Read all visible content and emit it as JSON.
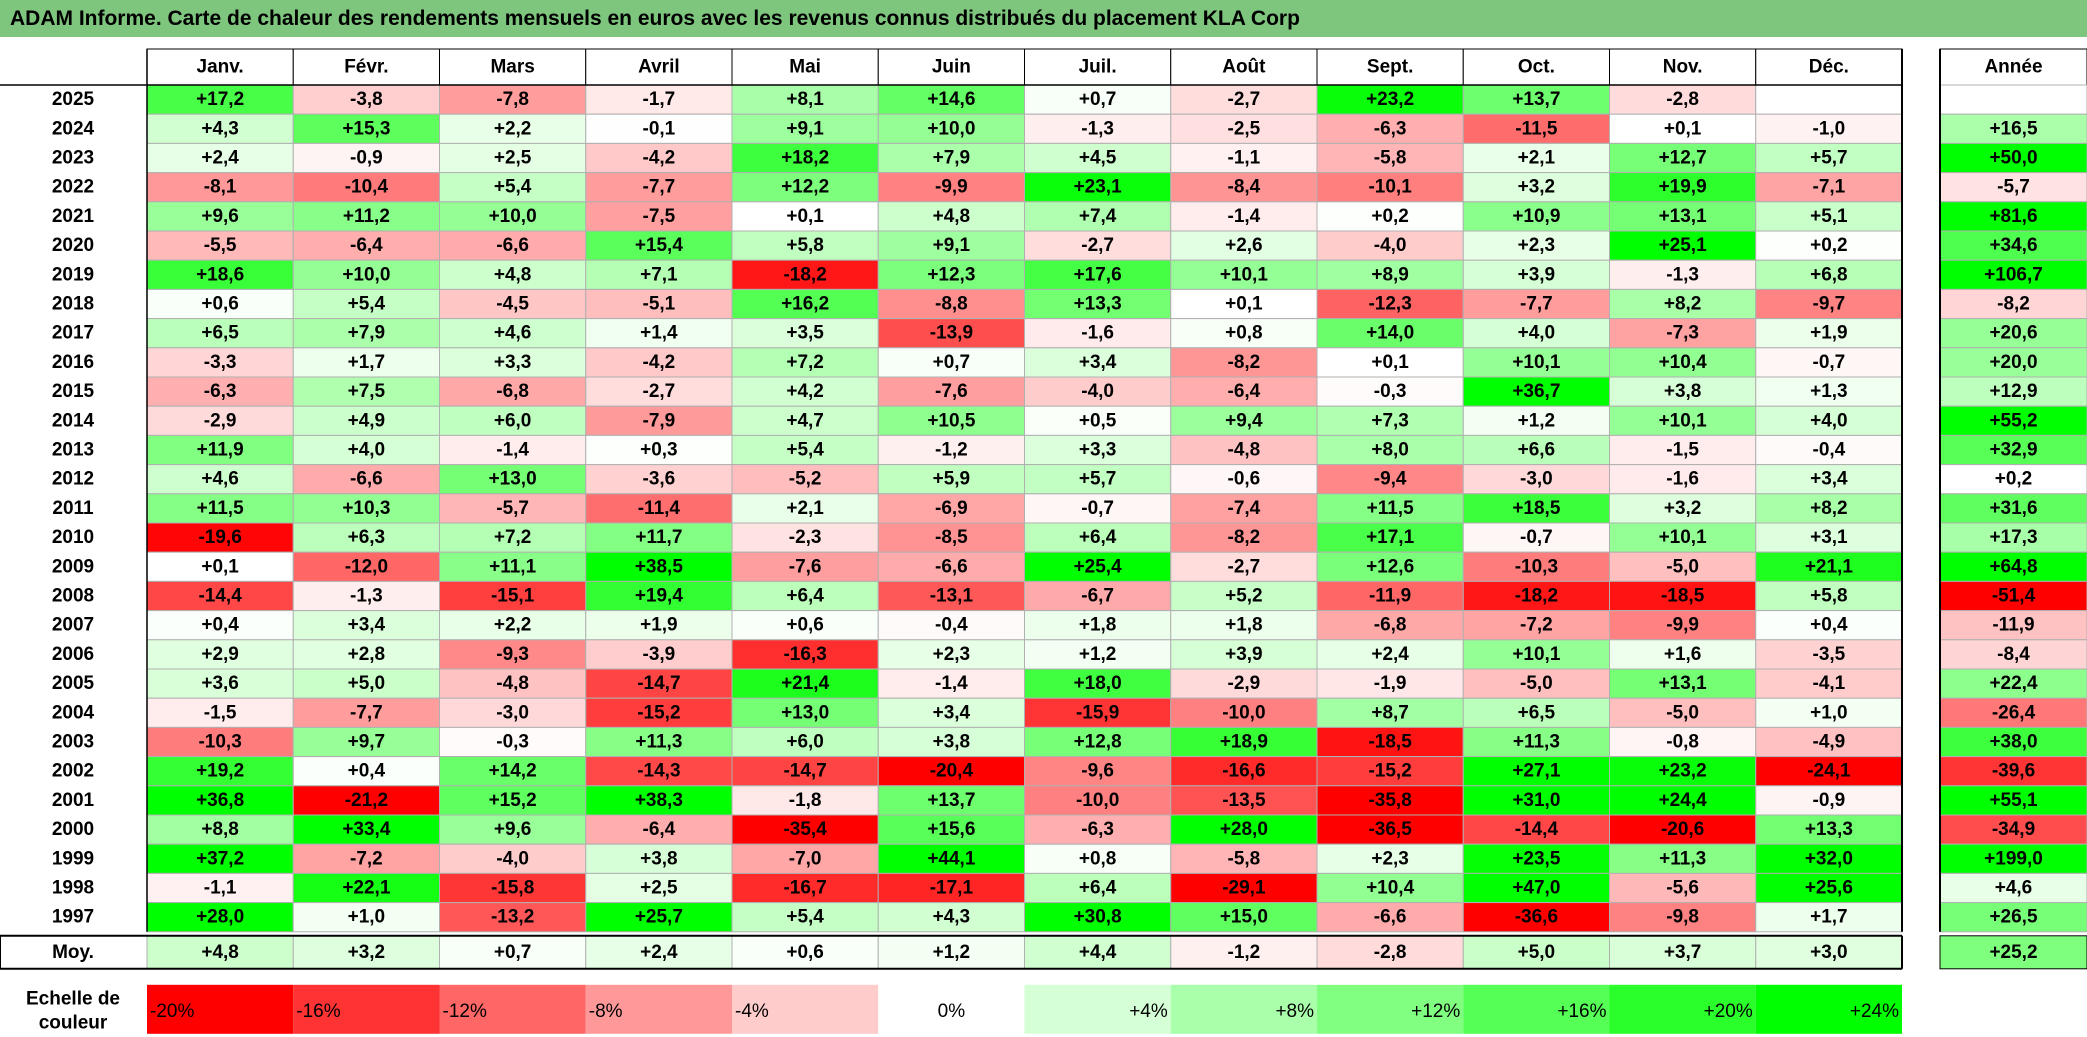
{
  "title": "ADAM Informe. Carte de chaleur des rendements mensuels en euros avec les revenus connus distribués du placement KLA Corp",
  "colors": {
    "title_bg": "#7ec67e",
    "neg_max": "#ff0000",
    "zero": "#ffffff",
    "pos_max": "#00ff00",
    "grid": "#b0b0b0"
  },
  "chart_data": {
    "type": "heatmap",
    "title": "ADAM Informe. Carte de chaleur des rendements mensuels en euros avec les revenus connus distribués du placement KLA Corp",
    "columns": [
      "Janv.",
      "Févr.",
      "Mars",
      "Avril",
      "Mai",
      "Juin",
      "Juil.",
      "Août",
      "Sept.",
      "Oct.",
      "Nov.",
      "Déc."
    ],
    "year_header": "Année",
    "rows": [
      {
        "year": "2025",
        "values": [
          "+17,2",
          "-3,8",
          "-7,8",
          "-1,7",
          "+8,1",
          "+14,6",
          "+0,7",
          "-2,7",
          "+23,2",
          "+13,7",
          "-2,8",
          ""
        ],
        "annual": ""
      },
      {
        "year": "2024",
        "values": [
          "+4,3",
          "+15,3",
          "+2,2",
          "-0,1",
          "+9,1",
          "+10,0",
          "-1,3",
          "-2,5",
          "-6,3",
          "-11,5",
          "+0,1",
          "-1,0"
        ],
        "annual": "+16,5"
      },
      {
        "year": "2023",
        "values": [
          "+2,4",
          "-0,9",
          "+2,5",
          "-4,2",
          "+18,2",
          "+7,9",
          "+4,5",
          "-1,1",
          "-5,8",
          "+2,1",
          "+12,7",
          "+5,7"
        ],
        "annual": "+50,0"
      },
      {
        "year": "2022",
        "values": [
          "-8,1",
          "-10,4",
          "+5,4",
          "-7,7",
          "+12,2",
          "-9,9",
          "+23,1",
          "-8,4",
          "-10,1",
          "+3,2",
          "+19,9",
          "-7,1"
        ],
        "annual": "-5,7"
      },
      {
        "year": "2021",
        "values": [
          "+9,6",
          "+11,2",
          "+10,0",
          "-7,5",
          "+0,1",
          "+4,8",
          "+7,4",
          "-1,4",
          "+0,2",
          "+10,9",
          "+13,1",
          "+5,1"
        ],
        "annual": "+81,6"
      },
      {
        "year": "2020",
        "values": [
          "-5,5",
          "-6,4",
          "-6,6",
          "+15,4",
          "+5,8",
          "+9,1",
          "-2,7",
          "+2,6",
          "-4,0",
          "+2,3",
          "+25,1",
          "+0,2"
        ],
        "annual": "+34,6"
      },
      {
        "year": "2019",
        "values": [
          "+18,6",
          "+10,0",
          "+4,8",
          "+7,1",
          "-18,2",
          "+12,3",
          "+17,6",
          "+10,1",
          "+8,9",
          "+3,9",
          "-1,3",
          "+6,8"
        ],
        "annual": "+106,7"
      },
      {
        "year": "2018",
        "values": [
          "+0,6",
          "+5,4",
          "-4,5",
          "-5,1",
          "+16,2",
          "-8,8",
          "+13,3",
          "+0,1",
          "-12,3",
          "-7,7",
          "+8,2",
          "-9,7"
        ],
        "annual": "-8,2"
      },
      {
        "year": "2017",
        "values": [
          "+6,5",
          "+7,9",
          "+4,6",
          "+1,4",
          "+3,5",
          "-13,9",
          "-1,6",
          "+0,8",
          "+14,0",
          "+4,0",
          "-7,3",
          "+1,9"
        ],
        "annual": "+20,6"
      },
      {
        "year": "2016",
        "values": [
          "-3,3",
          "+1,7",
          "+3,3",
          "-4,2",
          "+7,2",
          "+0,7",
          "+3,4",
          "-8,2",
          "+0,1",
          "+10,1",
          "+10,4",
          "-0,7"
        ],
        "annual": "+20,0"
      },
      {
        "year": "2015",
        "values": [
          "-6,3",
          "+7,5",
          "-6,8",
          "-2,7",
          "+4,2",
          "-7,6",
          "-4,0",
          "-6,4",
          "-0,3",
          "+36,7",
          "+3,8",
          "+1,3"
        ],
        "annual": "+12,9"
      },
      {
        "year": "2014",
        "values": [
          "-2,9",
          "+4,9",
          "+6,0",
          "-7,9",
          "+4,7",
          "+10,5",
          "+0,5",
          "+9,4",
          "+7,3",
          "+1,2",
          "+10,1",
          "+4,0"
        ],
        "annual": "+55,2"
      },
      {
        "year": "2013",
        "values": [
          "+11,9",
          "+4,0",
          "-1,4",
          "+0,3",
          "+5,4",
          "-1,2",
          "+3,3",
          "-4,8",
          "+8,0",
          "+6,6",
          "-1,5",
          "-0,4"
        ],
        "annual": "+32,9"
      },
      {
        "year": "2012",
        "values": [
          "+4,6",
          "-6,6",
          "+13,0",
          "-3,6",
          "-5,2",
          "+5,9",
          "+5,7",
          "-0,6",
          "-9,4",
          "-3,0",
          "-1,6",
          "+3,4"
        ],
        "annual": "+0,2"
      },
      {
        "year": "2011",
        "values": [
          "+11,5",
          "+10,3",
          "-5,7",
          "-11,4",
          "+2,1",
          "-6,9",
          "-0,7",
          "-7,4",
          "+11,5",
          "+18,5",
          "+3,2",
          "+8,2"
        ],
        "annual": "+31,6"
      },
      {
        "year": "2010",
        "values": [
          "-19,6",
          "+6,3",
          "+7,2",
          "+11,7",
          "-2,3",
          "-8,5",
          "+6,4",
          "-8,2",
          "+17,1",
          "-0,7",
          "+10,1",
          "+3,1"
        ],
        "annual": "+17,3"
      },
      {
        "year": "2009",
        "values": [
          "+0,1",
          "-12,0",
          "+11,1",
          "+38,5",
          "-7,6",
          "-6,6",
          "+25,4",
          "-2,7",
          "+12,6",
          "-10,3",
          "-5,0",
          "+21,1"
        ],
        "annual": "+64,8"
      },
      {
        "year": "2008",
        "values": [
          "-14,4",
          "-1,3",
          "-15,1",
          "+19,4",
          "+6,4",
          "-13,1",
          "-6,7",
          "+5,2",
          "-11,9",
          "-18,2",
          "-18,5",
          "+5,8"
        ],
        "annual": "-51,4"
      },
      {
        "year": "2007",
        "values": [
          "+0,4",
          "+3,4",
          "+2,2",
          "+1,9",
          "+0,6",
          "-0,4",
          "+1,8",
          "+1,8",
          "-6,8",
          "-7,2",
          "-9,9",
          "+0,4"
        ],
        "annual": "-11,9"
      },
      {
        "year": "2006",
        "values": [
          "+2,9",
          "+2,8",
          "-9,3",
          "-3,9",
          "-16,3",
          "+2,3",
          "+1,2",
          "+3,9",
          "+2,4",
          "+10,1",
          "+1,6",
          "-3,5"
        ],
        "annual": "-8,4"
      },
      {
        "year": "2005",
        "values": [
          "+3,6",
          "+5,0",
          "-4,8",
          "-14,7",
          "+21,4",
          "-1,4",
          "+18,0",
          "-2,9",
          "-1,9",
          "-5,0",
          "+13,1",
          "-4,1"
        ],
        "annual": "+22,4"
      },
      {
        "year": "2004",
        "values": [
          "-1,5",
          "-7,7",
          "-3,0",
          "-15,2",
          "+13,0",
          "+3,4",
          "-15,9",
          "-10,0",
          "+8,7",
          "+6,5",
          "-5,0",
          "+1,0"
        ],
        "annual": "-26,4"
      },
      {
        "year": "2003",
        "values": [
          "-10,3",
          "+9,7",
          "-0,3",
          "+11,3",
          "+6,0",
          "+3,8",
          "+12,8",
          "+18,9",
          "-18,5",
          "+11,3",
          "-0,8",
          "-4,9"
        ],
        "annual": "+38,0"
      },
      {
        "year": "2002",
        "values": [
          "+19,2",
          "+0,4",
          "+14,2",
          "-14,3",
          "-14,7",
          "-20,4",
          "-9,6",
          "-16,6",
          "-15,2",
          "+27,1",
          "+23,2",
          "-24,1"
        ],
        "annual": "-39,6"
      },
      {
        "year": "2001",
        "values": [
          "+36,8",
          "-21,2",
          "+15,2",
          "+38,3",
          "-1,8",
          "+13,7",
          "-10,0",
          "-13,5",
          "-35,8",
          "+31,0",
          "+24,4",
          "-0,9"
        ],
        "annual": "+55,1"
      },
      {
        "year": "2000",
        "values": [
          "+8,8",
          "+33,4",
          "+9,6",
          "-6,4",
          "-35,4",
          "+15,6",
          "-6,3",
          "+28,0",
          "-36,5",
          "-14,4",
          "-20,6",
          "+13,3"
        ],
        "annual": "-34,9"
      },
      {
        "year": "1999",
        "values": [
          "+37,2",
          "-7,2",
          "-4,0",
          "+3,8",
          "-7,0",
          "+44,1",
          "+0,8",
          "-5,8",
          "+2,3",
          "+23,5",
          "+11,3",
          "+32,0"
        ],
        "annual": "+199,0"
      },
      {
        "year": "1998",
        "values": [
          "-1,1",
          "+22,1",
          "-15,8",
          "+2,5",
          "-16,7",
          "-17,1",
          "+6,4",
          "-29,1",
          "+10,4",
          "+47,0",
          "-5,6",
          "+25,6"
        ],
        "annual": "+4,6"
      },
      {
        "year": "1997",
        "values": [
          "+28,0",
          "+1,0",
          "-13,2",
          "+25,7",
          "+5,4",
          "+4,3",
          "+30,8",
          "+15,0",
          "-6,6",
          "-36,6",
          "-9,8",
          "+1,7"
        ],
        "annual": "+26,5"
      }
    ],
    "average": {
      "label": "Moy.",
      "values": [
        "+4,8",
        "+3,2",
        "+0,7",
        "+2,4",
        "+0,6",
        "+1,2",
        "+4,4",
        "-1,2",
        "-2,8",
        "+5,0",
        "+3,7",
        "+3,0"
      ],
      "annual": "+25,2"
    },
    "scale": {
      "label_line1": "Echelle de",
      "label_line2": "couleur",
      "steps": [
        "-20%",
        "-16%",
        "-12%",
        "-8%",
        "-4%",
        "0%",
        "+4%",
        "+8%",
        "+12%",
        "+16%",
        "+20%",
        "+24%"
      ],
      "step_values": [
        -20,
        -16,
        -12,
        -8,
        -4,
        0,
        4,
        8,
        12,
        16,
        20,
        24
      ]
    }
  }
}
